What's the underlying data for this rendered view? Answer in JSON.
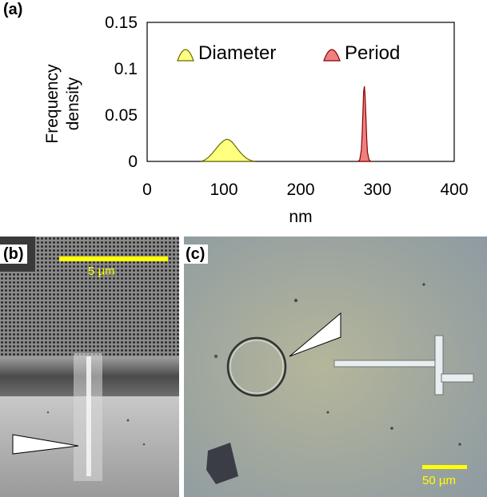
{
  "panels": {
    "a_label": "(a)",
    "b_label": "(b)",
    "c_label": "(c)"
  },
  "chart_data": {
    "type": "area",
    "xlabel": "nm",
    "ylabel_lines": [
      "Frequency",
      "density"
    ],
    "xlim": [
      0,
      400
    ],
    "ylim": [
      0,
      0.15
    ],
    "xticks": [
      0,
      100,
      200,
      300,
      400
    ],
    "yticks": [
      0.15,
      0.1,
      0.05,
      0
    ],
    "ytick_labels": [
      "0.15",
      "0.1",
      "0.05",
      "0"
    ],
    "legend_placement": "top",
    "series": [
      {
        "name": "Diameter",
        "color": "#ffff80",
        "stroke": "#6b6b00",
        "x": [
          70,
          75,
          80,
          85,
          90,
          95,
          100,
          103,
          106,
          110,
          115,
          120,
          125,
          130,
          135,
          140
        ],
        "y": [
          0.0,
          0.0015,
          0.0045,
          0.009,
          0.014,
          0.019,
          0.0225,
          0.0238,
          0.0235,
          0.0215,
          0.0165,
          0.011,
          0.0065,
          0.003,
          0.001,
          0.0
        ]
      },
      {
        "name": "Period",
        "color": "#f08080",
        "stroke": "#8b0000",
        "x": [
          275,
          277,
          279,
          280,
          281,
          282,
          283,
          284,
          285,
          286,
          287,
          289,
          291
        ],
        "y": [
          0.0,
          0.002,
          0.012,
          0.028,
          0.052,
          0.075,
          0.081,
          0.07,
          0.048,
          0.024,
          0.01,
          0.002,
          0.0
        ]
      }
    ]
  },
  "micrographs": {
    "b": {
      "scale_label": "5 µm"
    },
    "c": {
      "scale_label": "50 µm"
    }
  }
}
